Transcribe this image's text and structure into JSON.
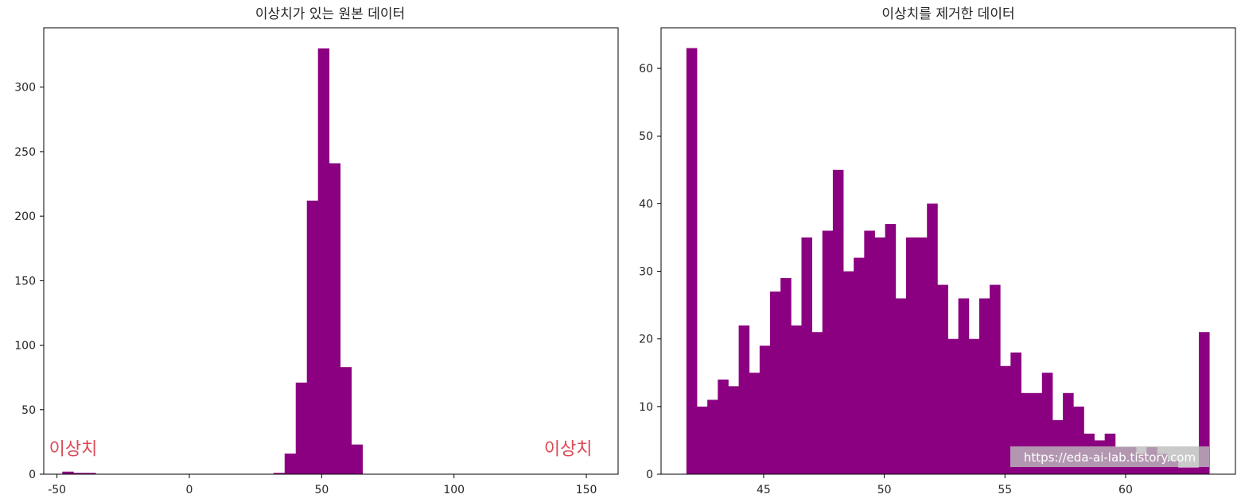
{
  "watermark": "https://eda-ai-lab.tistory.com",
  "colors": {
    "bar": "#8b0080",
    "annotation": "#d94a55",
    "axis": "#000000",
    "text": "#262626",
    "watermark_bg": "#bdbdbd"
  },
  "chart_data": [
    {
      "type": "bar",
      "title": "이상치가 있는 원본 데이터",
      "xlabel": "",
      "ylabel": "",
      "xlim": [
        -55,
        162
      ],
      "ylim": [
        0,
        346
      ],
      "xticks": [
        -50,
        0,
        50,
        100,
        150
      ],
      "xtick_labels": [
        "-50",
        "0",
        "50",
        "100",
        "150"
      ],
      "yticks": [
        0,
        50,
        100,
        150,
        200,
        250,
        300
      ],
      "ytick_labels": [
        "0",
        "50",
        "100",
        "150",
        "200",
        "250",
        "300"
      ],
      "bin_edges": [
        -48,
        -43.8,
        -39.6,
        -35.4,
        -31.2,
        -27,
        -22.8,
        -18.6,
        -14.4,
        -10.2,
        -6,
        -1.8,
        2.4,
        6.6,
        10.8,
        15,
        19.2,
        23.4,
        27.6,
        31.8,
        36,
        40.2,
        44.4,
        48.6,
        52.8,
        57,
        61.2,
        65.4,
        69.6,
        73.8,
        78,
        82.2,
        86.4,
        90.6,
        94.8,
        99,
        103.2,
        107.4,
        111.6,
        115.8,
        120,
        124.2,
        128.4,
        132.6,
        136.8,
        141,
        145.2,
        149.4,
        153.6,
        157.8,
        162
      ],
      "values": [
        2,
        1,
        1,
        0,
        0,
        0,
        0,
        0,
        0,
        0,
        0,
        0,
        0,
        0,
        0,
        0,
        0,
        0,
        0,
        1,
        16,
        71,
        212,
        330,
        241,
        83,
        23,
        0,
        0,
        0,
        0,
        0,
        0,
        0,
        0,
        0,
        0,
        0,
        0,
        0,
        0,
        0,
        0,
        0,
        0,
        0,
        0,
        0,
        0,
        0
      ],
      "annotations": [
        {
          "text": "이상치",
          "x": -53,
          "y": 15
        },
        {
          "text": "이상치",
          "x": 134,
          "y": 15
        }
      ],
      "grid": false
    },
    {
      "type": "bar",
      "title": "이상치를 제거한 데이터",
      "xlabel": "",
      "ylabel": "",
      "xlim": [
        40.75,
        64.55
      ],
      "ylim": [
        0,
        66
      ],
      "xticks": [
        45,
        50,
        55,
        60
      ],
      "xtick_labels": [
        "45",
        "50",
        "55",
        "60"
      ],
      "yticks": [
        0,
        10,
        20,
        30,
        40,
        50,
        60
      ],
      "ytick_labels": [
        "0",
        "10",
        "20",
        "30",
        "40",
        "50",
        "60"
      ],
      "bin_edges": [
        41.8,
        42.233,
        42.667,
        43.1,
        43.533,
        43.967,
        44.4,
        44.833,
        45.267,
        45.7,
        46.133,
        46.567,
        47,
        47.433,
        47.867,
        48.3,
        48.733,
        49.167,
        49.6,
        50.033,
        50.467,
        50.9,
        51.333,
        51.767,
        52.2,
        52.633,
        53.067,
        53.5,
        53.933,
        54.367,
        54.8,
        55.233,
        55.667,
        56.1,
        56.533,
        56.967,
        57.4,
        57.833,
        58.267,
        58.7,
        59.133,
        59.567,
        60,
        60.433,
        60.867,
        61.3,
        61.733,
        62.167,
        62.6,
        63.033,
        63.467
      ],
      "values": [
        63,
        10,
        11,
        14,
        13,
        22,
        15,
        19,
        27,
        29,
        22,
        35,
        21,
        36,
        45,
        30,
        32,
        36,
        35,
        37,
        26,
        35,
        35,
        40,
        28,
        20,
        26,
        20,
        26,
        28,
        16,
        18,
        12,
        12,
        15,
        8,
        12,
        10,
        6,
        5,
        6,
        4,
        4,
        3,
        4,
        3,
        2,
        1,
        1,
        21
      ],
      "grid": false
    }
  ]
}
